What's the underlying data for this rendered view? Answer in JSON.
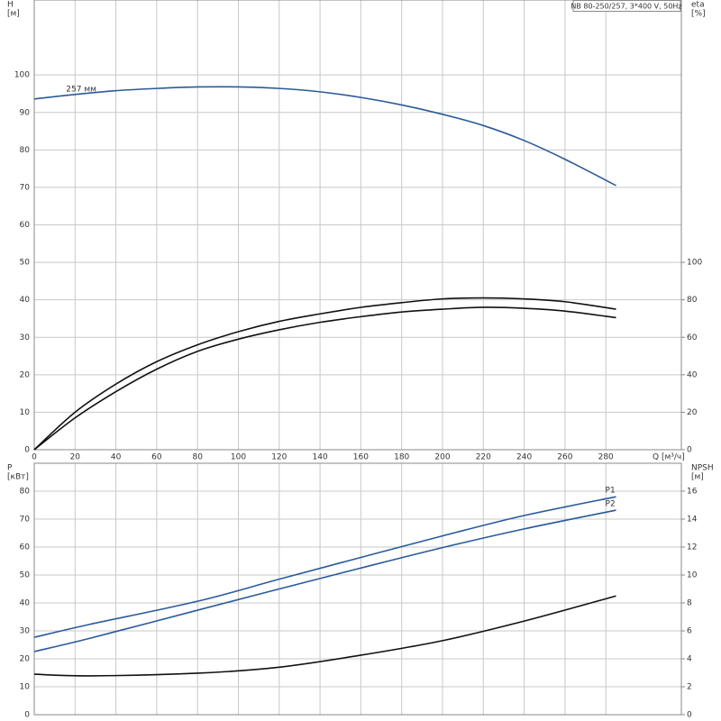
{
  "chart_data": [
    {
      "type": "line",
      "title": "NB 80-250/257, 3*400 V, 50Hz",
      "xlabel": "Q [м³/ч]",
      "ylabel": [
        "H",
        "[м]"
      ],
      "y2label": [
        "eta",
        "[%]"
      ],
      "xlim": [
        0,
        317
      ],
      "xticks": [
        0,
        20,
        40,
        60,
        80,
        100,
        120,
        140,
        160,
        180,
        200,
        220,
        240,
        260,
        280
      ],
      "ylim": [
        0,
        120
      ],
      "yticks": [
        0,
        10,
        20,
        30,
        40,
        50,
        60,
        70,
        80,
        90,
        100
      ],
      "y2lim": [
        0,
        240
      ],
      "y2ticks": [
        0,
        20,
        40,
        60,
        80,
        100
      ],
      "grid": true,
      "series": [
        {
          "name": "257 мм",
          "color": "#2a5a9a",
          "x": [
            0,
            20,
            40,
            60,
            80,
            100,
            120,
            140,
            160,
            180,
            200,
            220,
            240,
            260,
            285
          ],
          "values": [
            93.6,
            94.8,
            95.8,
            96.4,
            96.8,
            96.8,
            96.4,
            95.5,
            94.0,
            92.0,
            89.5,
            86.5,
            82.5,
            77.5,
            70.5
          ]
        },
        {
          "color": "#111111",
          "axis": "y2",
          "x": [
            0,
            20,
            40,
            60,
            80,
            100,
            120,
            140,
            160,
            180,
            200,
            220,
            240,
            260,
            285
          ],
          "values": [
            0,
            20,
            35,
            47,
            56,
            63,
            68.5,
            72.5,
            76,
            78.5,
            80.5,
            81,
            80.5,
            79,
            75
          ]
        },
        {
          "color": "#111111",
          "axis": "y2",
          "x": [
            0,
            20,
            40,
            60,
            80,
            100,
            120,
            140,
            160,
            180,
            200,
            220,
            240,
            260,
            285
          ],
          "values": [
            0,
            17,
            31,
            43,
            52.5,
            59,
            64,
            68,
            71,
            73.5,
            75,
            76,
            75.5,
            74,
            70.5
          ]
        }
      ]
    },
    {
      "type": "line",
      "ylabel": [
        "P",
        "[кВт]"
      ],
      "y2label": [
        "NPSH",
        "[м]"
      ],
      "xlim": [
        0,
        317
      ],
      "xticks": [
        0,
        20,
        40,
        60,
        80,
        100,
        120,
        140,
        160,
        180,
        200,
        220,
        240,
        260,
        280
      ],
      "ylim": [
        0,
        90
      ],
      "yticks": [
        0,
        10,
        20,
        30,
        40,
        50,
        60,
        70,
        80
      ],
      "y2lim": [
        0,
        18
      ],
      "y2ticks": [
        0,
        2,
        4,
        6,
        8,
        10,
        12,
        14,
        16
      ],
      "grid": true,
      "series": [
        {
          "name": "P1",
          "color": "#2a5a9a",
          "x": [
            0,
            27,
            80,
            120,
            160,
            200,
            240,
            285
          ],
          "values": [
            27.7,
            32.3,
            40.6,
            48.5,
            56.3,
            64,
            71.3,
            78
          ]
        },
        {
          "name": "P2",
          "color": "#2a5a9a",
          "x": [
            0,
            27,
            80,
            120,
            160,
            200,
            240,
            285
          ],
          "values": [
            22.6,
            27.3,
            37.4,
            45,
            52.5,
            59.8,
            66.5,
            73.2
          ]
        },
        {
          "color": "#111111",
          "axis": "y2",
          "x": [
            0,
            27,
            80,
            120,
            160,
            200,
            240,
            285
          ],
          "values": [
            2.9,
            2.78,
            2.97,
            3.4,
            4.26,
            5.3,
            6.7,
            8.5
          ]
        }
      ]
    }
  ]
}
